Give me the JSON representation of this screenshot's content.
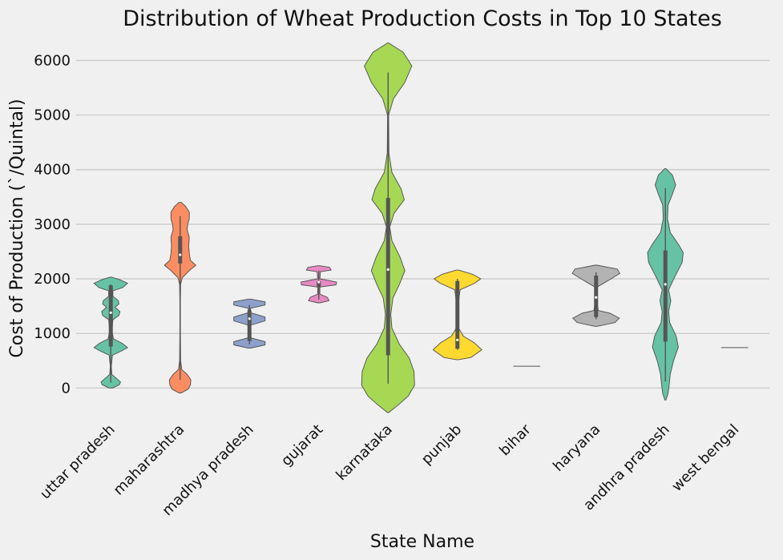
{
  "chart_data": {
    "type": "violin",
    "title": "Distribution of Wheat Production Costs in Top 10 States",
    "xlabel": "State Name",
    "ylabel": "Cost of Production (`/Quintal)",
    "ylim": [
      -450,
      6300
    ],
    "yticks": [
      0,
      1000,
      2000,
      3000,
      4000,
      5000,
      6000
    ],
    "grid": "horizontal",
    "categories": [
      "uttar pradesh",
      "maharashtra",
      "madhya pradesh",
      "gujarat",
      "karnataka",
      "punjab",
      "bihar",
      "haryana",
      "andhra pradesh",
      "west bengal"
    ],
    "colors": [
      "#66c2a5",
      "#fc8d62",
      "#8da0cb",
      "#e78ac3",
      "#a6d854",
      "#ffd92f",
      "#e5c494",
      "#b3b3b3",
      "#66c2a5",
      "#fc8d62"
    ],
    "series": [
      {
        "category": "uttar pradesh",
        "box": {
          "min": 100,
          "q1": 760,
          "median": 1380,
          "q3": 1880,
          "max": 1900
        },
        "density": [
          [
            0,
            0.06
          ],
          [
            60,
            0.32
          ],
          [
            110,
            0.36
          ],
          [
            170,
            0.22
          ],
          [
            250,
            0.04
          ],
          [
            400,
            0.02
          ],
          [
            600,
            0.06
          ],
          [
            680,
            0.4
          ],
          [
            740,
            0.62
          ],
          [
            820,
            0.42
          ],
          [
            900,
            0.1
          ],
          [
            1050,
            0.04
          ],
          [
            1250,
            0.08
          ],
          [
            1330,
            0.3
          ],
          [
            1400,
            0.34
          ],
          [
            1480,
            0.16
          ],
          [
            1540,
            0.3
          ],
          [
            1600,
            0.28
          ],
          [
            1680,
            0.08
          ],
          [
            1780,
            0.08
          ],
          [
            1840,
            0.44
          ],
          [
            1920,
            0.62
          ],
          [
            1990,
            0.3
          ],
          [
            2030,
            0.04
          ]
        ]
      },
      {
        "category": "maharashtra",
        "box": {
          "min": 150,
          "q1": 2280,
          "median": 2440,
          "q3": 2780,
          "max": 3150
        },
        "density": [
          [
            -90,
            0.04
          ],
          [
            -20,
            0.3
          ],
          [
            60,
            0.38
          ],
          [
            150,
            0.4
          ],
          [
            250,
            0.26
          ],
          [
            340,
            0.06
          ],
          [
            500,
            0.02
          ],
          [
            1000,
            0.01
          ],
          [
            1600,
            0.01
          ],
          [
            1900,
            0.02
          ],
          [
            2020,
            0.08
          ],
          [
            2150,
            0.34
          ],
          [
            2250,
            0.58
          ],
          [
            2340,
            0.38
          ],
          [
            2460,
            0.34
          ],
          [
            2600,
            0.32
          ],
          [
            2760,
            0.34
          ],
          [
            2900,
            0.26
          ],
          [
            3000,
            0.28
          ],
          [
            3100,
            0.34
          ],
          [
            3220,
            0.34
          ],
          [
            3330,
            0.2
          ],
          [
            3400,
            0.04
          ]
        ]
      },
      {
        "category": "madhya pradesh",
        "box": {
          "min": 800,
          "q1": 860,
          "median": 1270,
          "q3": 1430,
          "max": 1520
        },
        "density": [
          [
            730,
            0.04
          ],
          [
            790,
            0.58
          ],
          [
            850,
            0.58
          ],
          [
            920,
            0.04
          ],
          [
            1150,
            0.04
          ],
          [
            1230,
            0.58
          ],
          [
            1300,
            0.58
          ],
          [
            1380,
            0.04
          ],
          [
            1460,
            0.04
          ],
          [
            1520,
            0.58
          ],
          [
            1580,
            0.58
          ],
          [
            1630,
            0.04
          ]
        ]
      },
      {
        "category": "gujarat",
        "box": {
          "min": 1620,
          "q1": 1850,
          "median": 1940,
          "q3": 1960,
          "max": 2150
        },
        "density": [
          [
            1560,
            0.04
          ],
          [
            1600,
            0.38
          ],
          [
            1660,
            0.32
          ],
          [
            1720,
            0.04
          ],
          [
            1850,
            0.04
          ],
          [
            1890,
            0.64
          ],
          [
            1940,
            0.66
          ],
          [
            2000,
            0.04
          ],
          [
            2130,
            0.06
          ],
          [
            2160,
            0.46
          ],
          [
            2210,
            0.4
          ],
          [
            2240,
            0.04
          ]
        ]
      },
      {
        "category": "karnataka",
        "box": {
          "min": 80,
          "q1": 600,
          "median": 2170,
          "q3": 3480,
          "max": 5780
        },
        "density": [
          [
            -450,
            0.02
          ],
          [
            -300,
            0.4
          ],
          [
            -150,
            0.74
          ],
          [
            50,
            0.98
          ],
          [
            300,
            0.96
          ],
          [
            550,
            0.78
          ],
          [
            800,
            0.42
          ],
          [
            1100,
            0.14
          ],
          [
            1350,
            0.1
          ],
          [
            1650,
            0.18
          ],
          [
            1900,
            0.42
          ],
          [
            2150,
            0.62
          ],
          [
            2400,
            0.44
          ],
          [
            2700,
            0.14
          ],
          [
            2950,
            0.06
          ],
          [
            3200,
            0.22
          ],
          [
            3450,
            0.6
          ],
          [
            3650,
            0.48
          ],
          [
            3950,
            0.14
          ],
          [
            4300,
            0.03
          ],
          [
            5000,
            0.02
          ],
          [
            5300,
            0.2
          ],
          [
            5600,
            0.62
          ],
          [
            5900,
            0.88
          ],
          [
            6150,
            0.56
          ],
          [
            6320,
            0.02
          ]
        ]
      },
      {
        "category": "punjab",
        "box": {
          "min": 700,
          "q1": 720,
          "median": 880,
          "q3": 1960,
          "max": 2000
        },
        "density": [
          [
            520,
            0.04
          ],
          [
            560,
            0.5
          ],
          [
            700,
            0.9
          ],
          [
            830,
            0.62
          ],
          [
            950,
            0.22
          ],
          [
            1100,
            0.04
          ],
          [
            1500,
            0.02
          ],
          [
            1800,
            0.1
          ],
          [
            1920,
            0.64
          ],
          [
            2000,
            0.86
          ],
          [
            2080,
            0.58
          ],
          [
            2160,
            0.04
          ]
        ]
      },
      {
        "category": "bihar",
        "box": {
          "min": 400,
          "q1": 400,
          "median": 400,
          "q3": 400,
          "max": 400
        },
        "density": [
          [
            395,
            0.5
          ],
          [
            405,
            0.5
          ]
        ]
      },
      {
        "category": "haryana",
        "box": {
          "min": 1260,
          "q1": 1300,
          "median": 1660,
          "q3": 2060,
          "max": 2120
        },
        "density": [
          [
            1130,
            0.04
          ],
          [
            1200,
            0.7
          ],
          [
            1280,
            0.86
          ],
          [
            1370,
            0.52
          ],
          [
            1420,
            0.08
          ],
          [
            1600,
            0.03
          ],
          [
            1850,
            0.04
          ],
          [
            2000,
            0.56
          ],
          [
            2100,
            0.88
          ],
          [
            2180,
            0.78
          ],
          [
            2250,
            0.04
          ]
        ]
      },
      {
        "category": "andhra pradesh",
        "box": {
          "min": 120,
          "q1": 850,
          "median": 1900,
          "q3": 2520,
          "max": 3660
        },
        "density": [
          [
            -220,
            0.02
          ],
          [
            -100,
            0.1
          ],
          [
            60,
            0.14
          ],
          [
            250,
            0.18
          ],
          [
            500,
            0.3
          ],
          [
            750,
            0.48
          ],
          [
            950,
            0.4
          ],
          [
            1200,
            0.16
          ],
          [
            1400,
            0.12
          ],
          [
            1600,
            0.2
          ],
          [
            1800,
            0.12
          ],
          [
            2050,
            0.36
          ],
          [
            2300,
            0.62
          ],
          [
            2480,
            0.66
          ],
          [
            2620,
            0.5
          ],
          [
            2850,
            0.18
          ],
          [
            3100,
            0.08
          ],
          [
            3350,
            0.1
          ],
          [
            3550,
            0.26
          ],
          [
            3720,
            0.38
          ],
          [
            3900,
            0.26
          ],
          [
            4020,
            0.02
          ]
        ]
      },
      {
        "category": "west bengal",
        "box": {
          "min": 740,
          "q1": 740,
          "median": 740,
          "q3": 740,
          "max": 740
        },
        "density": [
          [
            735,
            0.5
          ],
          [
            745,
            0.5
          ]
        ]
      }
    ]
  }
}
